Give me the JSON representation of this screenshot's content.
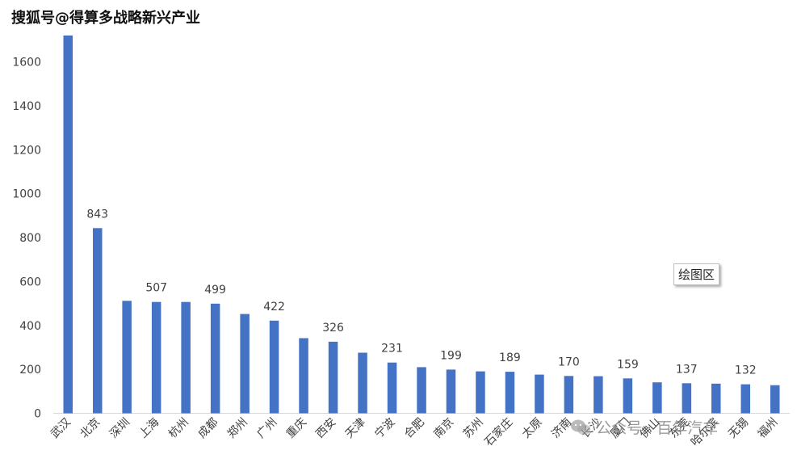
{
  "watermark_top": "搜狐号@得算多战略新兴产业",
  "tooltip": "绘图区",
  "watermark_bottom": "公众号 · 百年汽车",
  "colors": {
    "bar": "#4472C4",
    "axis": "#d9d9d9",
    "text": "#404040"
  },
  "chart_data": {
    "type": "bar",
    "categories": [
      "武汉",
      "北京",
      "深圳",
      "上海",
      "杭州",
      "成都",
      "郑州",
      "广州",
      "重庆",
      "西安",
      "天津",
      "宁波",
      "合肥",
      "南京",
      "苏州",
      "石家庄",
      "太原",
      "济南",
      "长沙",
      "厦门",
      "佛山",
      "东莞",
      "哈尔滨",
      "无锡",
      "福州"
    ],
    "values": [
      1720,
      843,
      512,
      507,
      507,
      499,
      452,
      422,
      342,
      326,
      276,
      231,
      210,
      199,
      191,
      189,
      176,
      170,
      169,
      159,
      141,
      137,
      135,
      132,
      128
    ],
    "data_labels": {
      "北京": "843",
      "上海": "507",
      "成都": "499",
      "广州": "422",
      "西安": "326",
      "宁波": "231",
      "南京": "199",
      "石家庄": "189",
      "济南": "170",
      "厦门": "159",
      "东莞": "137",
      "无锡": "132"
    },
    "yticks": [
      "0",
      "200",
      "400",
      "600",
      "800",
      "1000",
      "1200",
      "1400",
      "1600"
    ],
    "ylim": [
      0,
      1720
    ],
    "grid": false,
    "legend": "none"
  }
}
